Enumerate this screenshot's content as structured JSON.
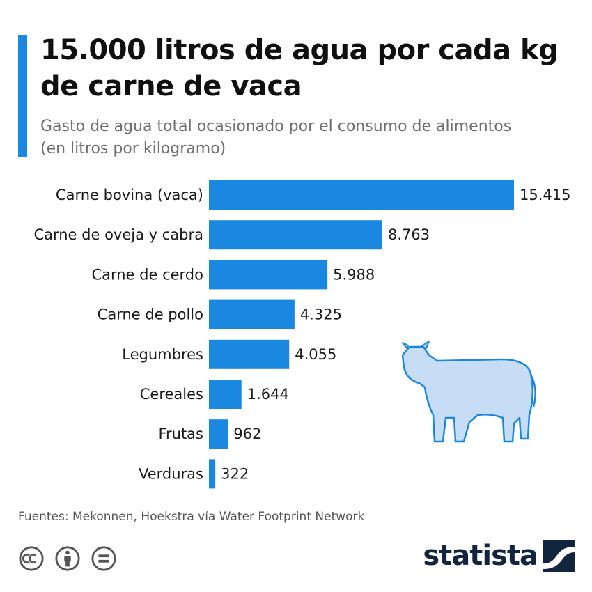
{
  "header": {
    "title": "15.000 litros de agua por cada kg de carne de vaca",
    "subtitle": "Gasto de agua total ocasionado por el consumo de alimentos (en litros por kilogramo)"
  },
  "chart_data": {
    "type": "bar",
    "orientation": "horizontal",
    "title": "15.000 litros de agua por cada kg de carne de vaca",
    "subtitle": "Gasto de agua total ocasionado por el consumo de alimentos (en litros por kilogramo)",
    "categories": [
      "Carne bovina (vaca)",
      "Carne de oveja y cabra",
      "Carne de cerdo",
      "Carne de pollo",
      "Legumbres",
      "Cereales",
      "Frutas",
      "Verduras"
    ],
    "values": [
      15415,
      8763,
      5988,
      4325,
      4055,
      1644,
      962,
      322
    ],
    "value_labels": [
      "15.415",
      "8.763",
      "5.988",
      "4.325",
      "4.055",
      "1.644",
      "962",
      "322"
    ],
    "xlim": [
      0,
      15415
    ],
    "grid": false,
    "legend": "none",
    "bar_color": "#1a88e0"
  },
  "footer": {
    "source": "Fuentes: Mekonnen, Hoekstra vía Water Footprint Network",
    "brand": "statista"
  },
  "icons": {
    "illustration": "cow-icon",
    "license": [
      "cc-icon",
      "attribution-icon",
      "no-derivatives-icon"
    ],
    "brand_mark": "statista-logo-icon"
  },
  "colors": {
    "accent": "#1a88e0",
    "bar": "#1a88e0",
    "cow_fill": "#c6ddf5",
    "cow_stroke": "#1a88e0",
    "brand": "#11253f"
  }
}
